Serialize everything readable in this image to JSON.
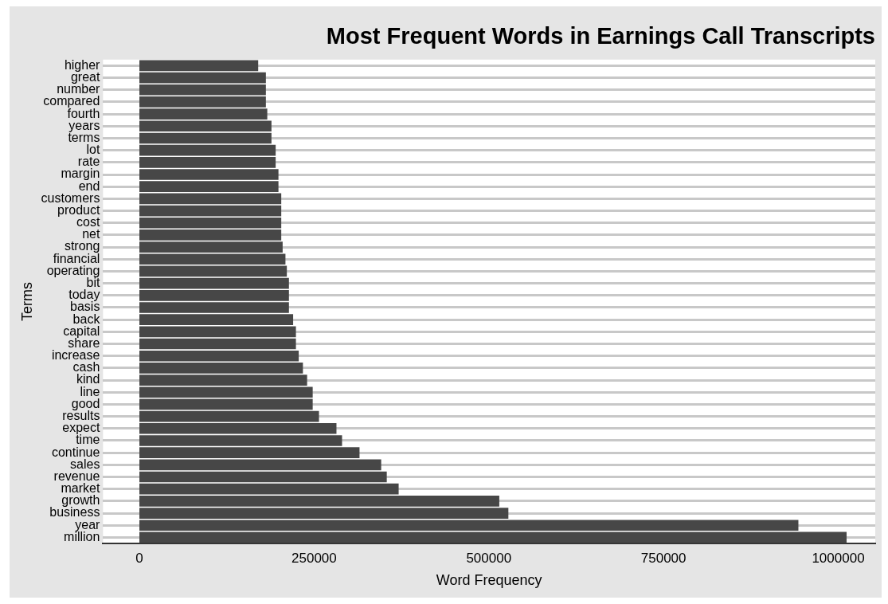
{
  "chart_data": {
    "type": "bar",
    "orientation": "horizontal",
    "title": "Most Frequent Words in Earnings Call Transcripts",
    "xlabel": "Word Frequency",
    "ylabel": "Terms",
    "categories": [
      "higher",
      "great",
      "number",
      "compared",
      "fourth",
      "years",
      "terms",
      "lot",
      "rate",
      "margin",
      "end",
      "customers",
      "product",
      "cost",
      "net",
      "strong",
      "financial",
      "operating",
      "bit",
      "today",
      "basis",
      "back",
      "capital",
      "share",
      "increase",
      "cash",
      "kind",
      "line",
      "good",
      "results",
      "expect",
      "time",
      "continue",
      "sales",
      "revenue",
      "market",
      "growth",
      "business",
      "year",
      "million"
    ],
    "values": [
      170000,
      181000,
      181000,
      181000,
      183000,
      189000,
      189000,
      195000,
      195000,
      199000,
      199000,
      203000,
      203000,
      203000,
      203000,
      205000,
      209000,
      211000,
      214000,
      214000,
      214000,
      220000,
      224000,
      224000,
      228000,
      234000,
      240000,
      248000,
      248000,
      257000,
      282000,
      290000,
      315000,
      346000,
      354000,
      371000,
      515000,
      528000,
      943000,
      1012000
    ],
    "color": "#474747",
    "xlim": [
      -52000,
      1053000
    ],
    "xticks": [
      0,
      250000,
      500000,
      750000,
      1000000
    ],
    "grid": "y",
    "legend": false
  }
}
